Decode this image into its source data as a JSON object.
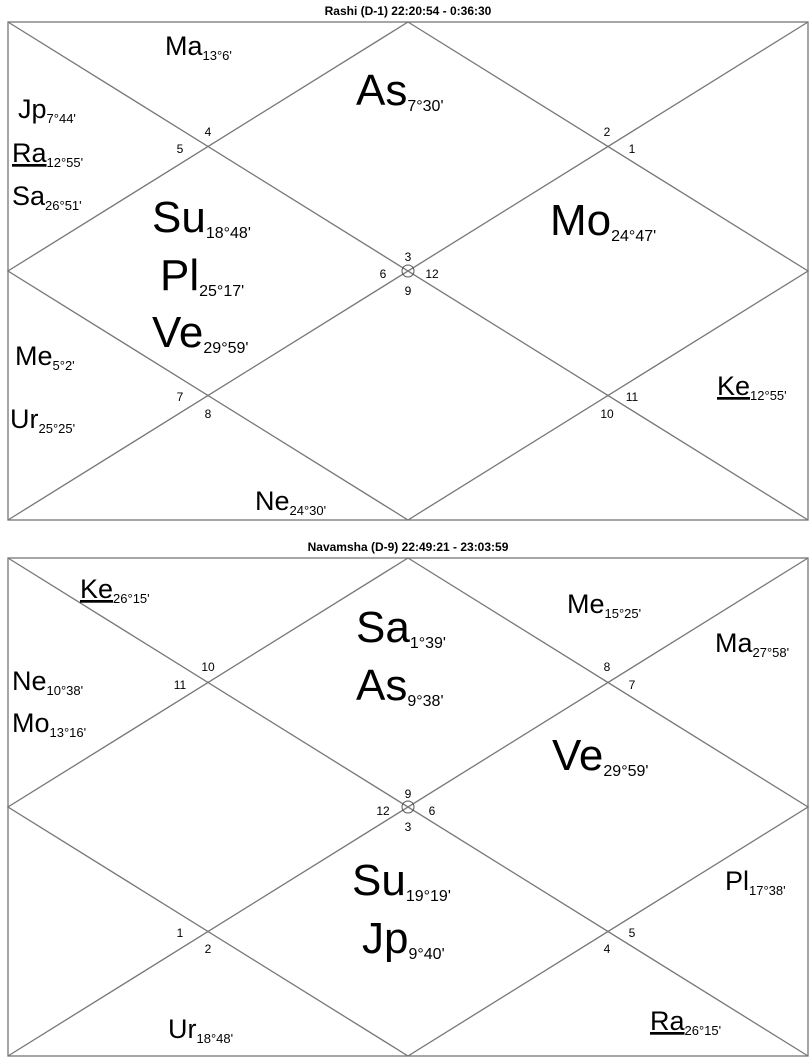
{
  "charts": [
    {
      "title": "Rashi (D-1) 22:20:54 - 0:36:30",
      "houses": [
        "4",
        "5",
        "2",
        "1",
        "3",
        "6",
        "12",
        "9",
        "7",
        "8",
        "11",
        "10"
      ],
      "planets": [
        {
          "name": "Ma",
          "degree": "13°6'"
        },
        {
          "name": "As",
          "degree": "7°30'"
        },
        {
          "name": "Jp",
          "degree": "7°44'"
        },
        {
          "name": "Ra",
          "degree": "12°55'",
          "underline": true
        },
        {
          "name": "Sa",
          "degree": "26°51'"
        },
        {
          "name": "Su",
          "degree": "18°48'"
        },
        {
          "name": "Mo",
          "degree": "24°47'"
        },
        {
          "name": "Pl",
          "degree": "25°17'"
        },
        {
          "name": "Ve",
          "degree": "29°59'"
        },
        {
          "name": "Me",
          "degree": "5°2'"
        },
        {
          "name": "Ke",
          "degree": "12°55'",
          "underline": true
        },
        {
          "name": "Ur",
          "degree": "25°25'"
        },
        {
          "name": "Ne",
          "degree": "24°30'"
        }
      ]
    },
    {
      "title": "Navamsha (D-9) 22:49:21 - 23:03:59",
      "houses": [
        "10",
        "11",
        "8",
        "7",
        "9",
        "12",
        "6",
        "3",
        "1",
        "2",
        "4",
        "5"
      ],
      "planets": [
        {
          "name": "Ke",
          "degree": "26°15'",
          "underline": true
        },
        {
          "name": "Me",
          "degree": "15°25'"
        },
        {
          "name": "Sa",
          "degree": "1°39'"
        },
        {
          "name": "Ma",
          "degree": "27°58'"
        },
        {
          "name": "Ne",
          "degree": "10°38'"
        },
        {
          "name": "As",
          "degree": "9°38'"
        },
        {
          "name": "Mo",
          "degree": "13°16'"
        },
        {
          "name": "Ve",
          "degree": "29°59'"
        },
        {
          "name": "Su",
          "degree": "19°19'"
        },
        {
          "name": "Pl",
          "degree": "17°38'"
        },
        {
          "name": "Jp",
          "degree": "9°40'"
        },
        {
          "name": "Ur",
          "degree": "18°48'"
        },
        {
          "name": "Ra",
          "degree": "26°15'",
          "underline": true
        }
      ]
    }
  ]
}
